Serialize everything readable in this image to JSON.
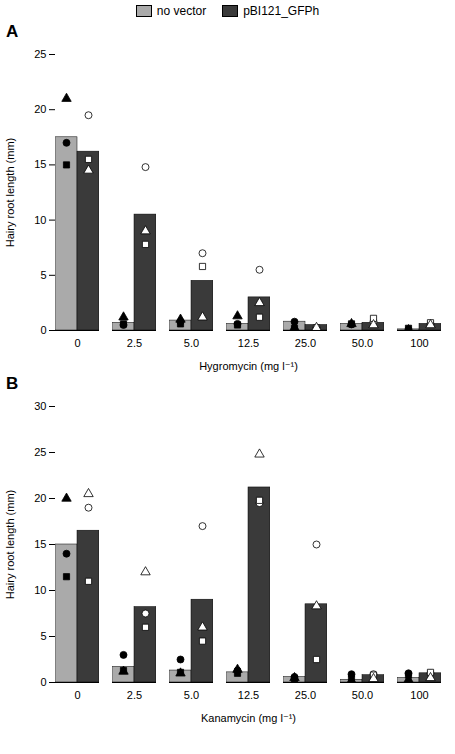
{
  "chart_data": [
    {
      "type": "bar",
      "title": "A",
      "xlabel": "Hygromycin (mg l⁻¹)",
      "ylabel": "Hairy root length (mm)",
      "ylim": [
        0,
        25
      ],
      "yticks": [
        0,
        5,
        10,
        15,
        20,
        25
      ],
      "grid": false,
      "legend": "top",
      "categories": [
        "0",
        "2.5",
        "5.0",
        "12.5",
        "25.0",
        "50.0",
        "100"
      ],
      "series": [
        {
          "name": "no vector",
          "color": "#aaaaaa",
          "values": [
            17.5,
            0.7,
            0.9,
            0.6,
            0.8,
            0.6,
            0.1
          ],
          "replicates": [
            {
              "marker": "circle",
              "color": "black",
              "values": [
                17.0,
                0.5,
                0.8,
                0.6,
                0.8,
                0.55,
                0.1
              ]
            },
            {
              "marker": "square",
              "color": "black",
              "values": [
                15.0,
                0.6,
                0.6,
                0.5,
                0.2,
                0.6,
                0.2
              ]
            },
            {
              "marker": "triangle",
              "color": "black",
              "values": [
                21.0,
                1.2,
                1.0,
                1.3,
                0.25,
                0.6,
                0.05
              ]
            }
          ]
        },
        {
          "name": "pBI121_GFPh",
          "color": "#3a3a3a",
          "values": [
            16.2,
            10.5,
            4.5,
            3.0,
            0.5,
            0.7,
            0.6
          ],
          "replicates": [
            {
              "marker": "circle",
              "color": "white",
              "values": [
                19.5,
                14.8,
                7.0,
                5.5,
                0.25,
                0.8,
                0.6
              ]
            },
            {
              "marker": "square",
              "color": "white",
              "values": [
                15.5,
                7.8,
                5.8,
                1.2,
                0.25,
                1.1,
                0.7
              ]
            },
            {
              "marker": "triangle",
              "color": "white",
              "values": [
                14.5,
                9.0,
                1.2,
                2.5,
                0.25,
                0.5,
                0.5
              ]
            }
          ]
        }
      ]
    },
    {
      "type": "bar",
      "title": "B",
      "xlabel": "Kanamycin (mg l⁻¹)",
      "ylabel": "Hairy root length (mm)",
      "ylim": [
        0,
        30
      ],
      "yticks": [
        0,
        5,
        10,
        15,
        20,
        25,
        30
      ],
      "grid": false,
      "categories": [
        "0",
        "2.5",
        "5.0",
        "12.5",
        "25.0",
        "50.0",
        "100"
      ],
      "series": [
        {
          "name": "no vector",
          "color": "#aaaaaa",
          "values": [
            15.0,
            1.7,
            1.3,
            1.1,
            0.6,
            0.3,
            0.5
          ],
          "replicates": [
            {
              "marker": "circle",
              "color": "black",
              "values": [
                14.0,
                3.0,
                2.5,
                1.3,
                0.6,
                0.9,
                1.0
              ]
            },
            {
              "marker": "square",
              "color": "black",
              "values": [
                11.5,
                1.3,
                1.1,
                1.0,
                0.4,
                0.4,
                0.8
              ]
            },
            {
              "marker": "triangle",
              "color": "black",
              "values": [
                20.0,
                1.2,
                1.0,
                1.4,
                0.5,
                0.2,
                0.3
              ]
            }
          ]
        },
        {
          "name": "pBI121_GFPh",
          "color": "#3a3a3a",
          "values": [
            16.5,
            8.2,
            9.0,
            21.2,
            8.5,
            0.8,
            1.0
          ],
          "replicates": [
            {
              "marker": "circle",
              "color": "white",
              "values": [
                19.0,
                7.5,
                17.0,
                19.5,
                15.0,
                0.9,
                1.0
              ]
            },
            {
              "marker": "square",
              "color": "white",
              "values": [
                11.0,
                6.0,
                4.5,
                19.8,
                2.5,
                0.8,
                1.1
              ]
            },
            {
              "marker": "triangle",
              "color": "white",
              "values": [
                20.5,
                12.0,
                6.0,
                24.8,
                8.3,
                0.4,
                0.5
              ]
            }
          ]
        }
      ]
    }
  ]
}
